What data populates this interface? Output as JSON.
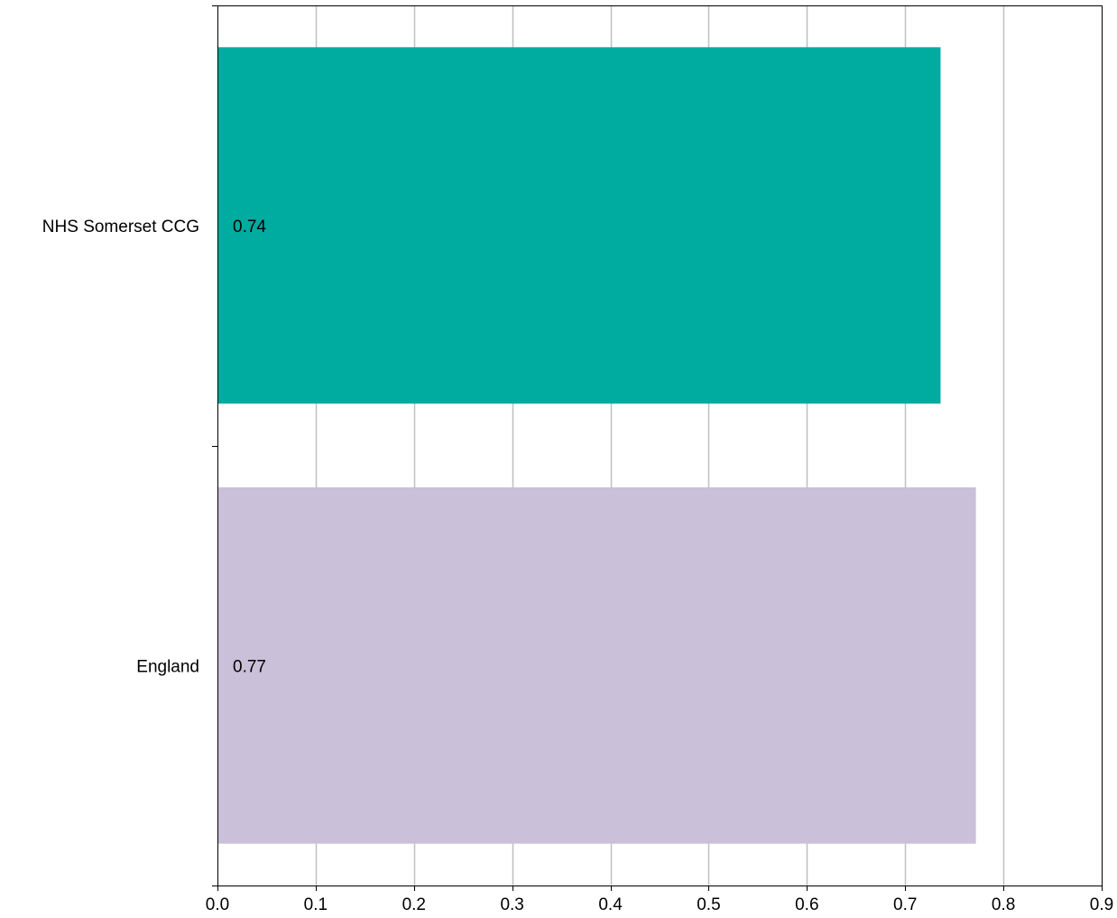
{
  "chart_data": {
    "type": "bar",
    "orientation": "horizontal",
    "categories": [
      "NHS Somerset CCG",
      "England"
    ],
    "values": [
      0.736,
      0.772
    ],
    "data_labels": [
      "0.74",
      "0.77"
    ],
    "bar_colors": [
      "#00ab9f",
      "#cac0da"
    ],
    "xlim": [
      0,
      0.9
    ],
    "x_ticks": [
      0.0,
      0.1,
      0.2,
      0.3,
      0.4,
      0.5,
      0.6,
      0.7,
      0.8,
      0.9
    ],
    "x_tick_labels": [
      "0.0",
      "0.1",
      "0.2",
      "0.3",
      "0.4",
      "0.5",
      "0.6",
      "0.7",
      "0.8",
      "0.9"
    ],
    "grid": true,
    "grid_color": "#c0c0c0",
    "title": "",
    "xlabel": "",
    "ylabel": ""
  }
}
